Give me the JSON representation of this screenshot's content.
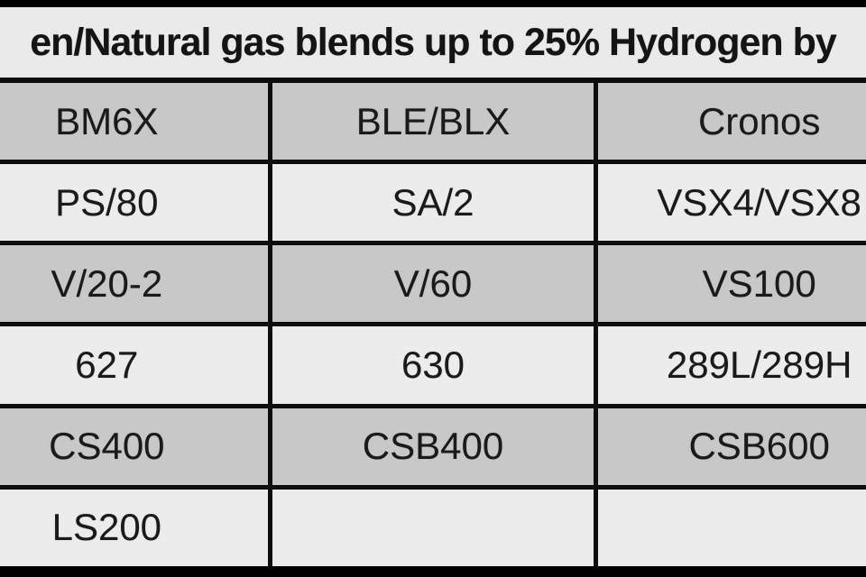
{
  "title": {
    "text": "en/Natural gas blends up to 25% Hydrogen by"
  },
  "table": {
    "rows": [
      [
        "BM6X",
        "BLE/BLX",
        "Cronos"
      ],
      [
        "PS/80",
        "SA/2",
        "VSX4/VSX8"
      ],
      [
        "V/20-2",
        "V/60",
        "VS100"
      ],
      [
        "627",
        "630",
        "289L/289H"
      ],
      [
        "CS400",
        "CSB400",
        "CSB600"
      ],
      [
        "LS200",
        "",
        ""
      ]
    ]
  },
  "colors": {
    "letterbox": "#000000",
    "border": "#0d0d0d",
    "title_background": "#eaeaea",
    "row_gray": "#c8c8c8",
    "row_light": "#ececec",
    "text": "#1a1a1a"
  }
}
